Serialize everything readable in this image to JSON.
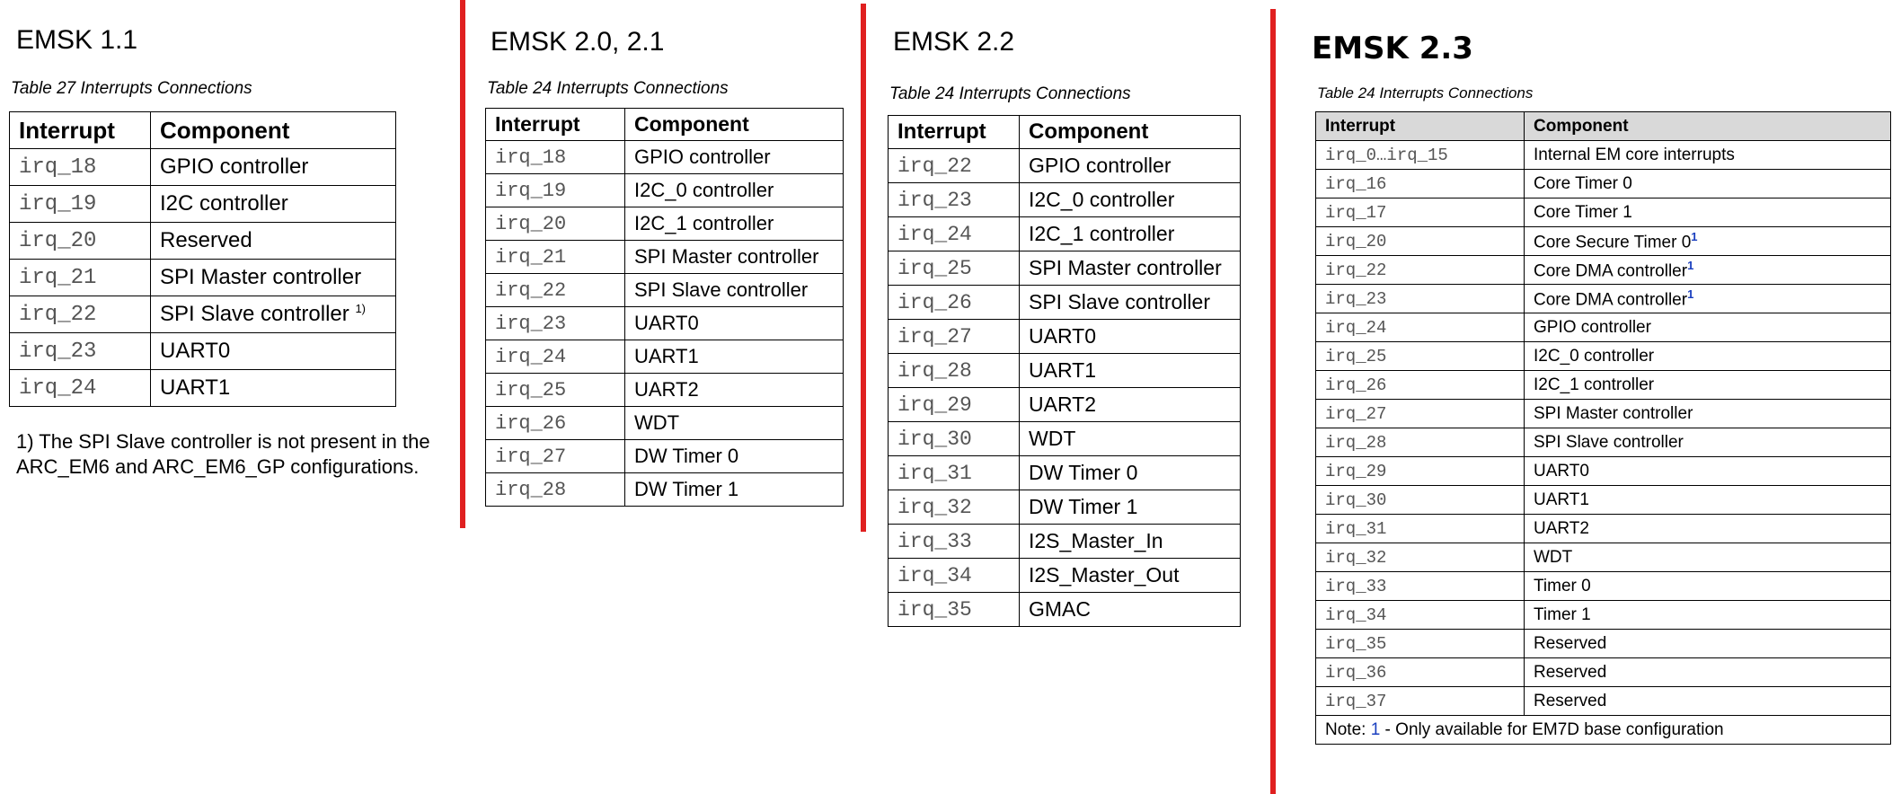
{
  "colors": {
    "divider": "#e02020",
    "header_bg": "#d9d9d9",
    "irq_text": "#555555",
    "note_blue": "#1a3fbf"
  },
  "panels": [
    {
      "title": "EMSK 1.1",
      "caption": "Table 27 Interrupts Connections",
      "headers": [
        "Interrupt",
        "Component"
      ],
      "rows": [
        {
          "irq": "irq_18",
          "component": "GPIO controller",
          "sup": ""
        },
        {
          "irq": "irq_19",
          "component": "I2C controller",
          "sup": ""
        },
        {
          "irq": "irq_20",
          "component": "Reserved",
          "sup": ""
        },
        {
          "irq": "irq_21",
          "component": "SPI Master controller",
          "sup": ""
        },
        {
          "irq": "irq_22",
          "component": "SPI Slave controller",
          "sup": "1)"
        },
        {
          "irq": "irq_23",
          "component": "UART0",
          "sup": ""
        },
        {
          "irq": "irq_24",
          "component": "UART1",
          "sup": ""
        }
      ],
      "footnote_line1": "1) The SPI Slave controller is not present in the",
      "footnote_line2": "ARC_EM6 and ARC_EM6_GP configurations."
    },
    {
      "title": "EMSK 2.0, 2.1",
      "caption": "Table 24 Interrupts Connections",
      "headers": [
        "Interrupt",
        "Component"
      ],
      "rows": [
        {
          "irq": "irq_18",
          "component": "GPIO controller"
        },
        {
          "irq": "irq_19",
          "component": "I2C_0 controller"
        },
        {
          "irq": "irq_20",
          "component": "I2C_1 controller"
        },
        {
          "irq": "irq_21",
          "component": "SPI Master controller"
        },
        {
          "irq": "irq_22",
          "component": "SPI Slave controller"
        },
        {
          "irq": "irq_23",
          "component": "UART0"
        },
        {
          "irq": "irq_24",
          "component": "UART1"
        },
        {
          "irq": "irq_25",
          "component": "UART2"
        },
        {
          "irq": "irq_26",
          "component": "WDT"
        },
        {
          "irq": "irq_27",
          "component": "DW Timer 0"
        },
        {
          "irq": "irq_28",
          "component": "DW Timer 1"
        }
      ]
    },
    {
      "title": "EMSK 2.2",
      "caption": "Table 24 Interrupts Connections",
      "headers": [
        "Interrupt",
        "Component"
      ],
      "rows": [
        {
          "irq": "irq_22",
          "component": "GPIO controller"
        },
        {
          "irq": "irq_23",
          "component": "I2C_0 controller"
        },
        {
          "irq": "irq_24",
          "component": "I2C_1 controller"
        },
        {
          "irq": "irq_25",
          "component": "SPI Master controller"
        },
        {
          "irq": "irq_26",
          "component": "SPI Slave controller"
        },
        {
          "irq": "irq_27",
          "component": "UART0"
        },
        {
          "irq": "irq_28",
          "component": "UART1"
        },
        {
          "irq": "irq_29",
          "component": "UART2"
        },
        {
          "irq": "irq_30",
          "component": "WDT"
        },
        {
          "irq": "irq_31",
          "component": "DW Timer 0"
        },
        {
          "irq": "irq_32",
          "component": "DW Timer 1"
        },
        {
          "irq": "irq_33",
          "component": "I2S_Master_In"
        },
        {
          "irq": "irq_34",
          "component": "I2S_Master_Out"
        },
        {
          "irq": "irq_35",
          "component": "GMAC"
        }
      ]
    },
    {
      "title": "EMSK 2.3",
      "caption": "Table 24 Interrupts Connections",
      "headers": [
        "Interrupt",
        "Component"
      ],
      "rows": [
        {
          "irq": "irq_0…irq_15",
          "component": "Internal EM core interrupts",
          "sup": ""
        },
        {
          "irq": "irq_16",
          "component": "Core Timer 0",
          "sup": ""
        },
        {
          "irq": "irq_17",
          "component": "Core Timer 1",
          "sup": ""
        },
        {
          "irq": "irq_20",
          "component": "Core Secure Timer 0",
          "sup": "1"
        },
        {
          "irq": "irq_22",
          "component": "Core DMA controller",
          "sup": "1"
        },
        {
          "irq": "irq_23",
          "component": "Core DMA controller",
          "sup": "1"
        },
        {
          "irq": "irq_24",
          "component": "GPIO controller",
          "sup": ""
        },
        {
          "irq": "irq_25",
          "component": "I2C_0 controller",
          "sup": ""
        },
        {
          "irq": "irq_26",
          "component": "I2C_1 controller",
          "sup": ""
        },
        {
          "irq": "irq_27",
          "component": "SPI Master controller",
          "sup": ""
        },
        {
          "irq": "irq_28",
          "component": "SPI Slave controller",
          "sup": ""
        },
        {
          "irq": "irq_29",
          "component": "UART0",
          "sup": ""
        },
        {
          "irq": "irq_30",
          "component": "UART1",
          "sup": ""
        },
        {
          "irq": "irq_31",
          "component": "UART2",
          "sup": ""
        },
        {
          "irq": "irq_32",
          "component": "WDT",
          "sup": ""
        },
        {
          "irq": "irq_33",
          "component": "Timer 0",
          "sup": ""
        },
        {
          "irq": "irq_34",
          "component": "Timer 1",
          "sup": ""
        },
        {
          "irq": "irq_35",
          "component": "Reserved",
          "sup": ""
        },
        {
          "irq": "irq_36",
          "component": "Reserved",
          "sup": ""
        },
        {
          "irq": "irq_37",
          "component": "Reserved",
          "sup": ""
        }
      ],
      "note_prefix": "Note: ",
      "note_num": "1",
      "note_text": " - Only available for EM7D base configuration"
    }
  ]
}
